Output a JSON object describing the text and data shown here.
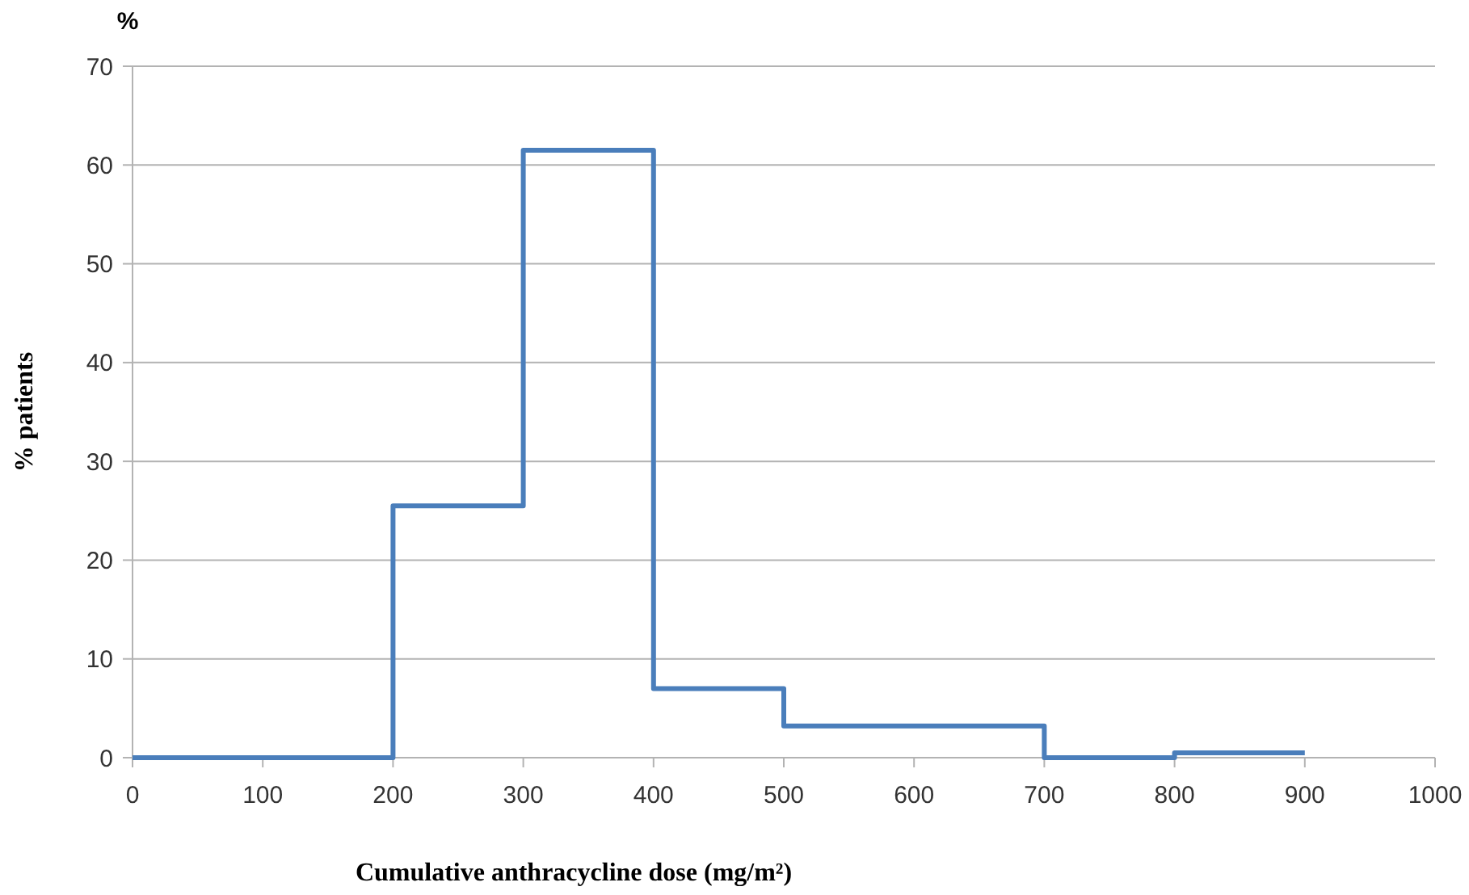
{
  "chart_data": {
    "type": "step",
    "xlabel": "Cumulative anthracycline dose (mg/m²)",
    "ylabel": "% patients",
    "annotations": [
      "%"
    ],
    "x": [
      0,
      200,
      300,
      400,
      500,
      700,
      800,
      900
    ],
    "series": [
      {
        "color": "#4a7ebb",
        "values": [
          0,
          25.5,
          61.5,
          7,
          3.2,
          0,
          0.5,
          0.5
        ]
      }
    ],
    "xlim": [
      0,
      1000
    ],
    "xticks": [
      0,
      100,
      200,
      300,
      400,
      500,
      600,
      700,
      800,
      900,
      1000
    ],
    "ylim": [
      0,
      70
    ],
    "yticks": [
      0,
      10,
      20,
      30,
      40,
      50,
      60,
      70
    ],
    "grid": "y",
    "marker": "none",
    "line_style": "solid"
  }
}
